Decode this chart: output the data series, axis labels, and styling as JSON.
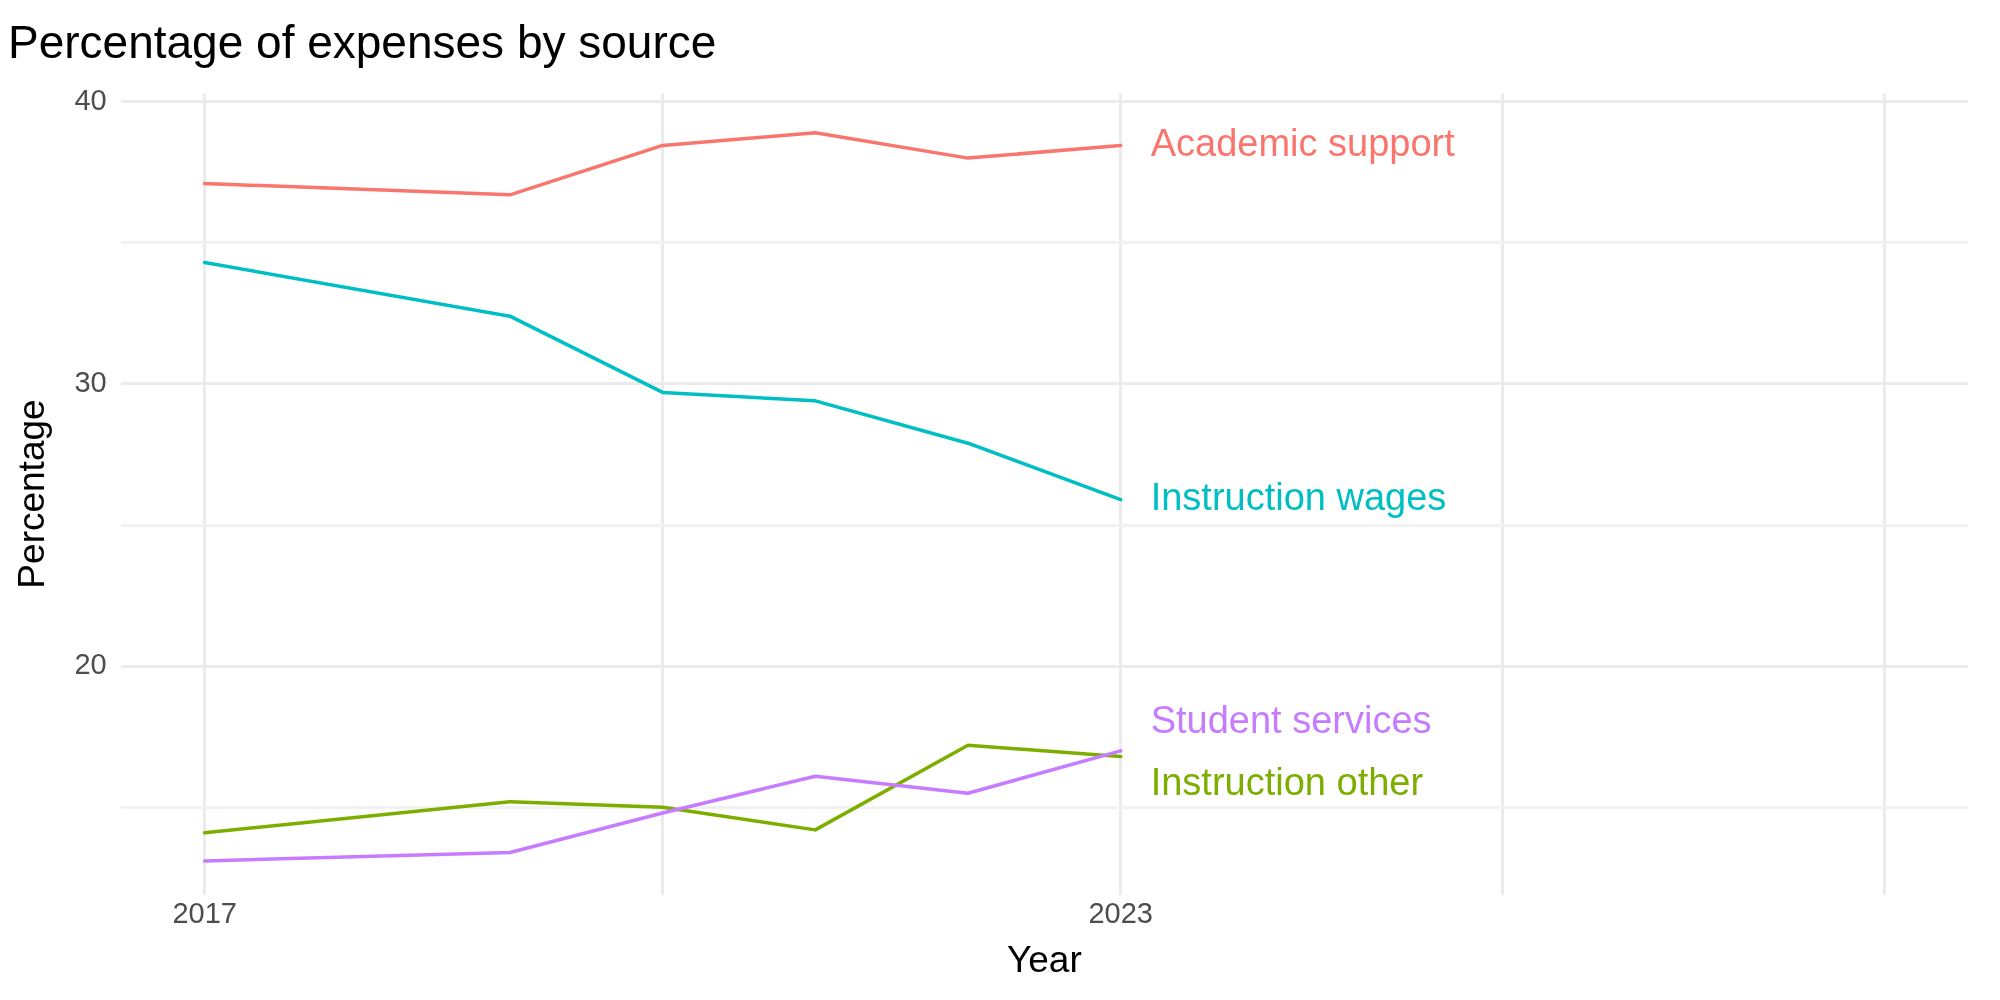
{
  "chart_data": {
    "type": "line",
    "title": "Percentage of expenses by source",
    "xlabel": "Year",
    "ylabel": "Percentage",
    "x": [
      2017,
      2019,
      2020,
      2021,
      2022,
      2023
    ],
    "series": [
      {
        "name": "Academic support",
        "color": "#f8766d",
        "values": [
          37.1,
          36.7,
          38.45,
          38.9,
          38.0,
          38.45
        ]
      },
      {
        "name": "Instruction wages",
        "color": "#00bfc4",
        "values": [
          34.3,
          32.4,
          29.7,
          29.4,
          27.9,
          25.9
        ]
      },
      {
        "name": "Student services",
        "color": "#c77cff",
        "values": [
          13.1,
          13.4,
          14.8,
          16.1,
          15.5,
          17.0
        ]
      },
      {
        "name": "Instruction other",
        "color": "#7cae00",
        "values": [
          14.1,
          15.2,
          15.0,
          14.2,
          17.2,
          16.8
        ]
      }
    ],
    "xlim": [
      2016.45,
      2028.55
    ],
    "xticks": [
      2017,
      {
        "value": 2020,
        "label": null
      },
      2023,
      {
        "value": 2025.5,
        "label": null
      },
      {
        "value": 2028,
        "label": null
      }
    ],
    "ylim": [
      11.9,
      40.3
    ],
    "yticks": [
      {
        "value": 15,
        "label": null
      },
      20,
      {
        "value": 25,
        "label": null
      },
      30,
      {
        "value": 35,
        "label": null
      },
      40
    ],
    "grid": true,
    "legend": false,
    "marker": "none",
    "line_style": "solid"
  }
}
